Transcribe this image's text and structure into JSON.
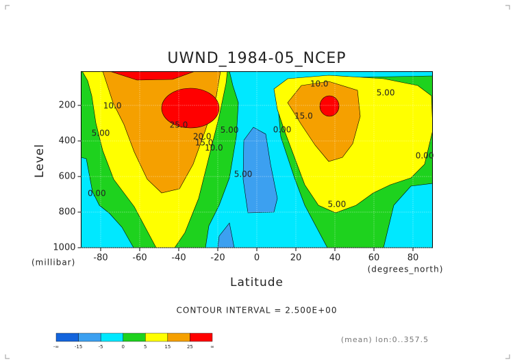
{
  "chart_data": {
    "type": "contour",
    "title": "UWND_1984-05_NCEP",
    "xlabel": "Latitude",
    "ylabel": "Level",
    "xunit": "(degrees_north)",
    "yunit": "(millibar)",
    "xlim": [
      -90,
      90
    ],
    "ylim": [
      1000,
      10
    ],
    "xticks": [
      -80,
      -60,
      -40,
      -20,
      0,
      20,
      40,
      60,
      80
    ],
    "yticks": [
      200,
      400,
      600,
      800,
      1000
    ],
    "grid": true,
    "contour_labels": [
      {
        "label": "10.0",
        "lat": -74,
        "level": 204
      },
      {
        "label": "5.00",
        "lat": -80,
        "level": 358
      },
      {
        "label": "0.00",
        "lat": -82,
        "level": 696
      },
      {
        "label": "25.0",
        "lat": -40,
        "level": 312
      },
      {
        "label": "20.0",
        "lat": -28,
        "level": 377
      },
      {
        "label": "15.0",
        "lat": -27,
        "level": 412
      },
      {
        "label": "10.0",
        "lat": -22,
        "level": 440
      },
      {
        "label": "5.00",
        "lat": -14,
        "level": 340
      },
      {
        "label": "5.00",
        "lat": -7,
        "level": 588
      },
      {
        "label": "0.00",
        "lat": 13,
        "level": 338
      },
      {
        "label": "10.0",
        "lat": 32,
        "level": 81
      },
      {
        "label": "15.0",
        "lat": 24,
        "level": 262
      },
      {
        "label": "5.00",
        "lat": 66,
        "level": 131
      },
      {
        "label": "5.00",
        "lat": 41,
        "level": 758
      },
      {
        "label": "0.00",
        "lat": 86,
        "level": 485
      }
    ],
    "contour_interval": "CONTOUR INTERVAL = 2.500E+00",
    "note": "(mean) lon:0..357.5",
    "colorbar": {
      "labels": [
        "-∞",
        -15,
        -5,
        0,
        5,
        15,
        25,
        "∞"
      ],
      "colors": [
        "#1464dc",
        "#3ca0f0",
        "#00e8ff",
        "#1ed21e",
        "#ffff00",
        "#f5a000",
        "#ff0000"
      ]
    }
  }
}
